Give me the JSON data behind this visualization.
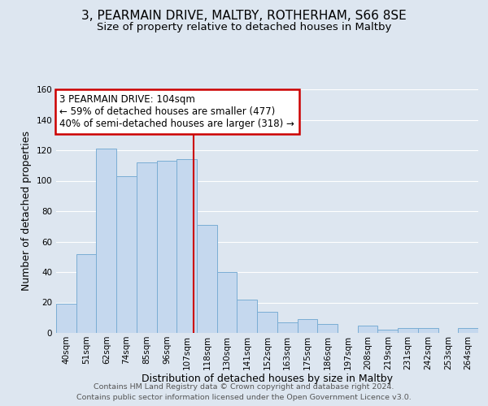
{
  "title": "3, PEARMAIN DRIVE, MALTBY, ROTHERHAM, S66 8SE",
  "subtitle": "Size of property relative to detached houses in Maltby",
  "xlabel": "Distribution of detached houses by size in Maltby",
  "ylabel": "Number of detached properties",
  "footer_line1": "Contains HM Land Registry data © Crown copyright and database right 2024.",
  "footer_line2": "Contains public sector information licensed under the Open Government Licence v3.0.",
  "bin_labels": [
    "40sqm",
    "51sqm",
    "62sqm",
    "74sqm",
    "85sqm",
    "96sqm",
    "107sqm",
    "118sqm",
    "130sqm",
    "141sqm",
    "152sqm",
    "163sqm",
    "175sqm",
    "186sqm",
    "197sqm",
    "208sqm",
    "219sqm",
    "231sqm",
    "242sqm",
    "253sqm",
    "264sqm"
  ],
  "bar_heights": [
    19,
    52,
    121,
    103,
    112,
    113,
    114,
    71,
    40,
    22,
    14,
    7,
    9,
    6,
    0,
    5,
    2,
    3,
    3,
    0,
    3
  ],
  "bar_color": "#c5d8ee",
  "bar_edge_color": "#7aadd4",
  "vline_x_index": 6,
  "vline_color": "#cc0000",
  "annotation_line1": "3 PEARMAIN DRIVE: 104sqm",
  "annotation_line2": "← 59% of detached houses are smaller (477)",
  "annotation_line3": "40% of semi-detached houses are larger (318) →",
  "annotation_box_edge_color": "#cc0000",
  "ylim": [
    0,
    160
  ],
  "yticks": [
    0,
    20,
    40,
    60,
    80,
    100,
    120,
    140,
    160
  ],
  "grid_color": "#ffffff",
  "background_color": "#dde6f0",
  "title_fontsize": 11,
  "subtitle_fontsize": 9.5,
  "axis_label_fontsize": 9,
  "tick_fontsize": 7.5,
  "annotation_fontsize": 8.5,
  "footer_fontsize": 6.8
}
